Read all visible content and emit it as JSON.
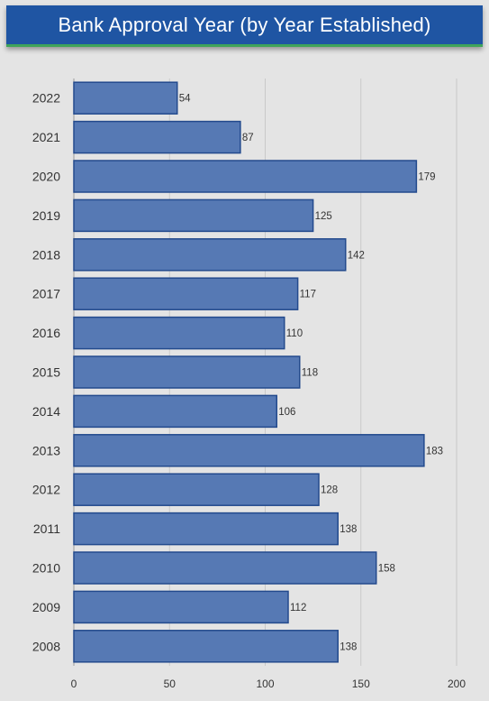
{
  "header": {
    "title": "Bank Approval Year (by Year Established)"
  },
  "chart_data": {
    "type": "bar",
    "orientation": "horizontal",
    "categories": [
      "2022",
      "2021",
      "2020",
      "2019",
      "2018",
      "2017",
      "2016",
      "2015",
      "2014",
      "2013",
      "2012",
      "2011",
      "2010",
      "2009",
      "2008"
    ],
    "values": [
      54,
      87,
      179,
      125,
      142,
      117,
      110,
      118,
      106,
      183,
      128,
      138,
      158,
      112,
      138
    ],
    "x_ticks": [
      0,
      50,
      100,
      150,
      200
    ],
    "xlim": [
      0,
      200
    ],
    "grid": true,
    "title": "Bank Approval Year (by Year Established)",
    "xlabel": "",
    "ylabel": "",
    "colors": {
      "bar_fill": "#5679b4",
      "bar_stroke": "#234a8d",
      "header_bg": "#1f55a3",
      "header_accent": "#3fa45a"
    }
  }
}
